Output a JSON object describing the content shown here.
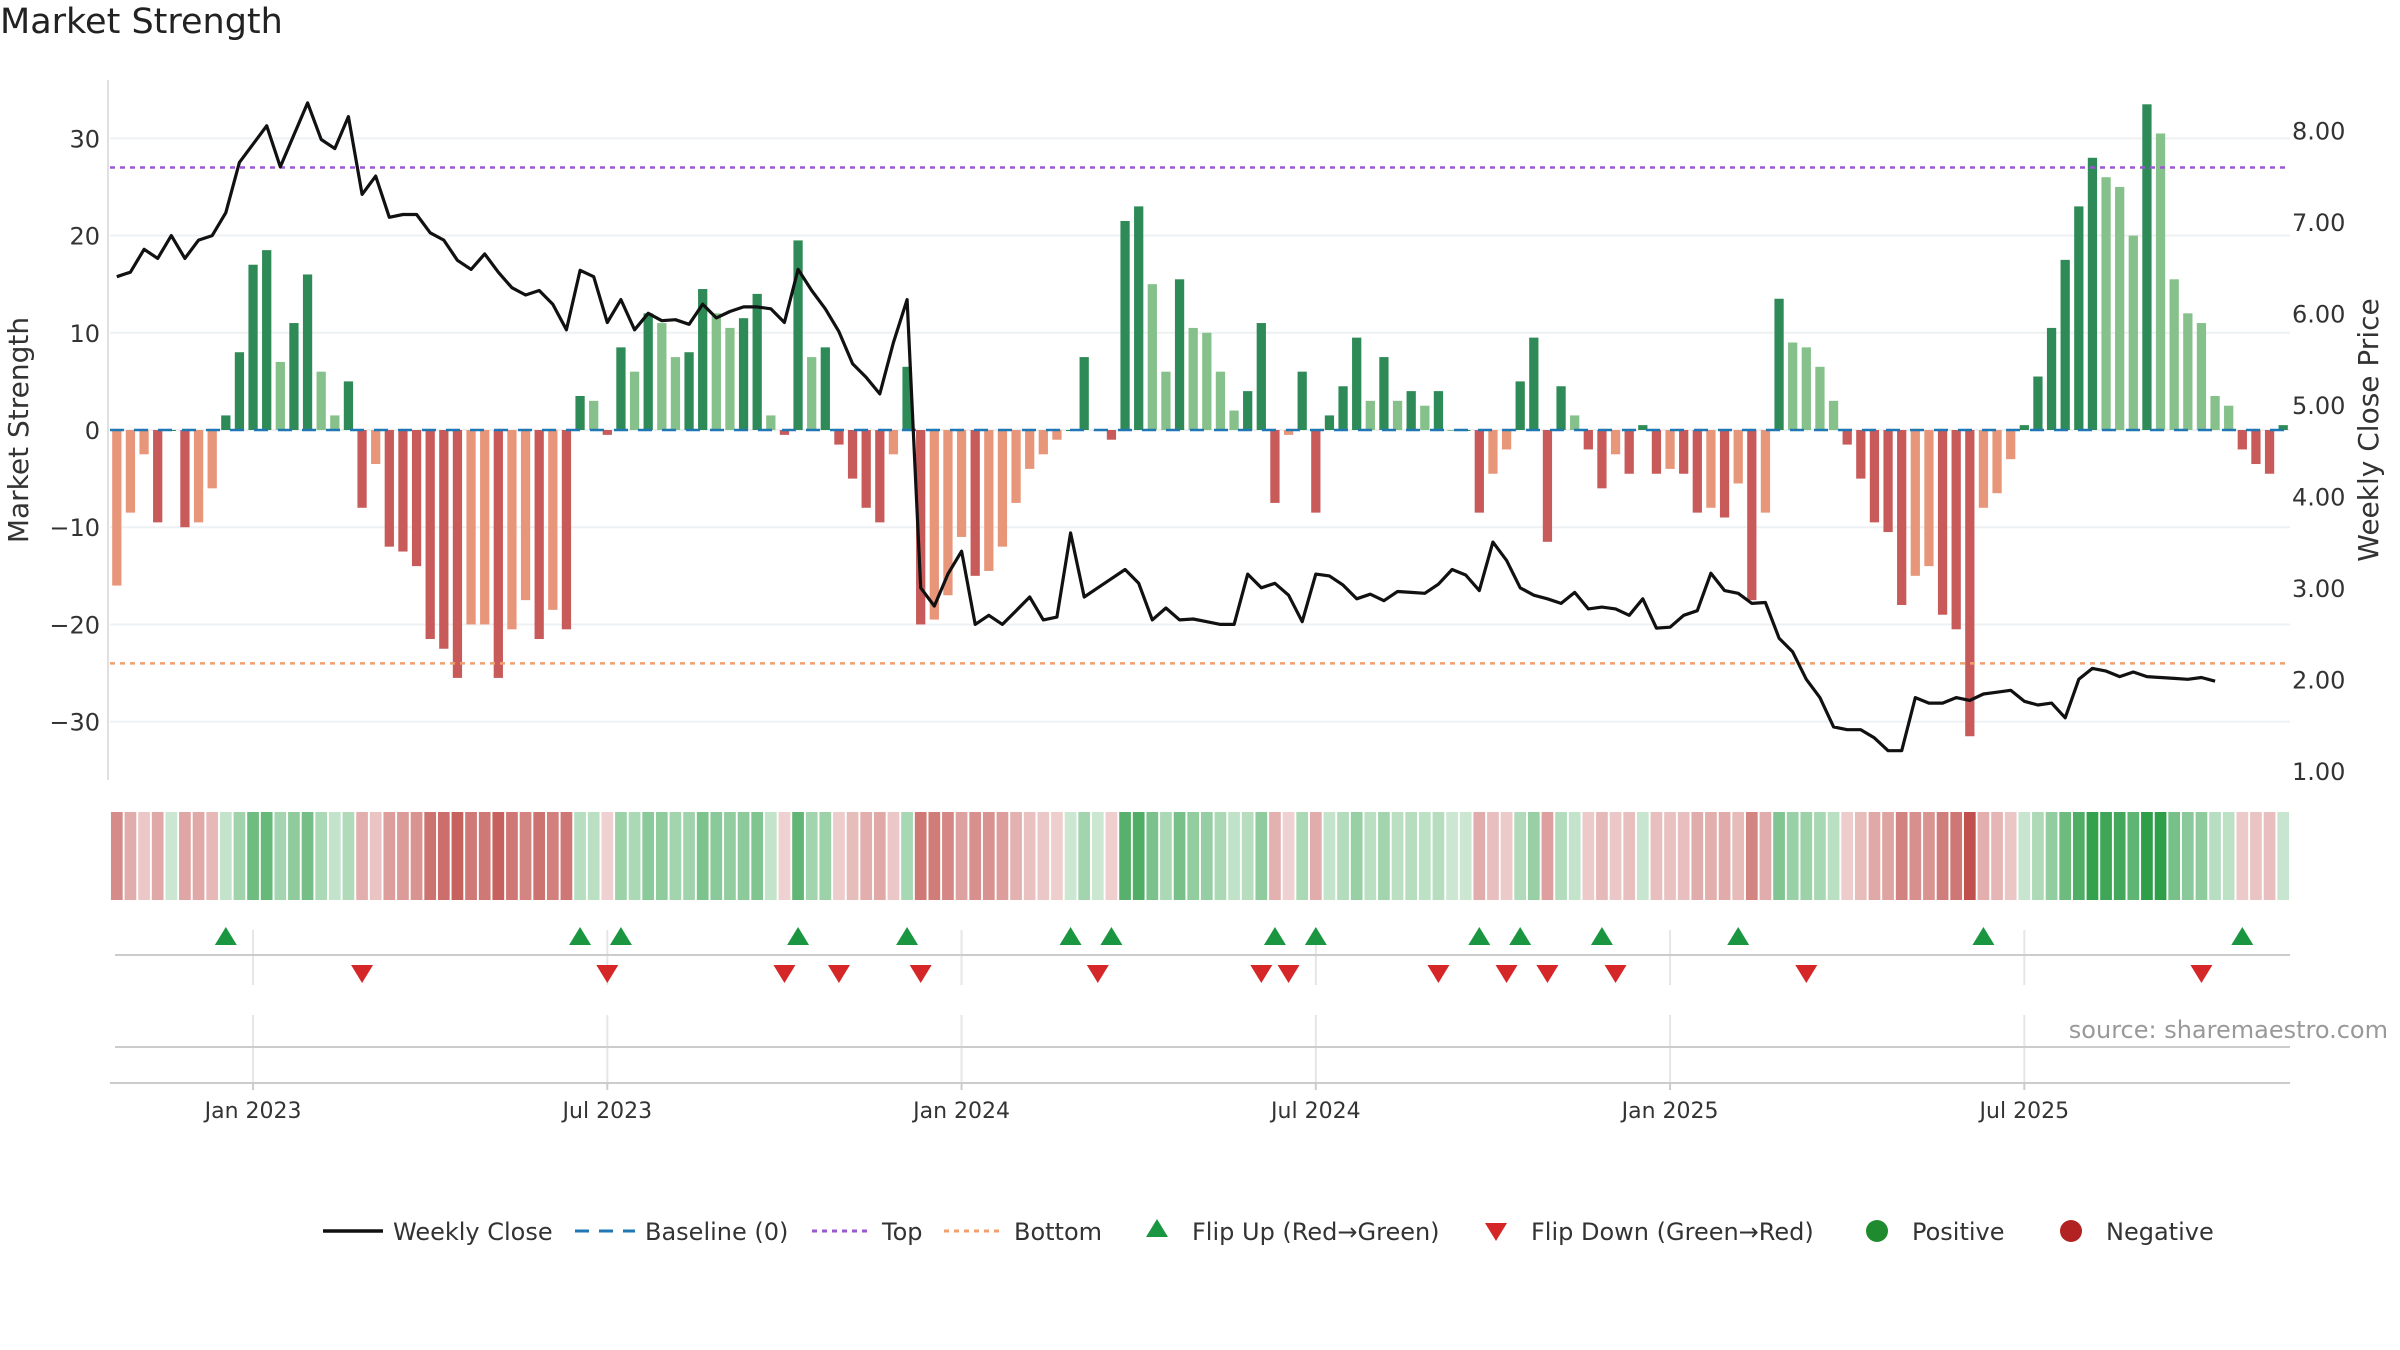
{
  "title": "Market Strength",
  "source": "source: sharemaestro.com",
  "colors": {
    "pos_dark": "#2e8b57",
    "pos_light": "#86c08a",
    "neg_dark": "#c85a5a",
    "neg_light": "#e8967a",
    "top_line": "#9b59d0",
    "bottom_line": "#f0a070",
    "baseline": "#1f77b4",
    "close": "#111111",
    "flip_up": "#1a9641",
    "flip_down": "#d62728",
    "positive": "#1e8c2e",
    "negative": "#b22222"
  },
  "legend": [
    {
      "label": "Weekly Close",
      "kind": "line",
      "color": "#111111"
    },
    {
      "label": "Baseline (0)",
      "kind": "dash",
      "color": "#1f77b4"
    },
    {
      "label": "Top",
      "kind": "dot",
      "color": "#9b59d0"
    },
    {
      "label": "Bottom",
      "kind": "dot",
      "color": "#f0a070"
    },
    {
      "label": "Flip Up (Red→Green)",
      "kind": "tri-up",
      "color": "#1a9641"
    },
    {
      "label": "Flip Down (Green→Red)",
      "kind": "tri-down",
      "color": "#d62728"
    },
    {
      "label": "Positive",
      "kind": "circle",
      "color": "#1e8c2e"
    },
    {
      "label": "Negative",
      "kind": "circle",
      "color": "#b22222"
    }
  ],
  "chart_data": {
    "type": "bar",
    "xlabels": [
      "Jan 2023",
      "Jul 2023",
      "Jan 2024",
      "Jul 2024",
      "Jan 2025",
      "Jul 2025"
    ],
    "xlabel_week_index": [
      10,
      36,
      62,
      88,
      114,
      140
    ],
    "ylabel_left": "Market Strength",
    "ylabel_right": "Weekly Close Price",
    "yticks_left": [
      30,
      20,
      10,
      0,
      -10,
      -20,
      -30
    ],
    "ytick_labels_left": [
      "30",
      "20",
      "10",
      "0",
      "−10",
      "−20",
      "−30"
    ],
    "ylim_left": [
      -36,
      36
    ],
    "yticks_right": [
      1,
      2,
      3,
      4,
      5,
      6,
      7,
      8
    ],
    "ytick_labels_right": [
      "1.00",
      "2.00",
      "3.00",
      "4.00",
      "5.00",
      "6.00",
      "7.00",
      "8.00"
    ],
    "ylim_right": [
      0.9,
      8.55
    ],
    "top_level": 27,
    "bottom_level": -24,
    "strength": [
      -16,
      -8.5,
      -2.5,
      -9.5,
      0,
      -10,
      -9.5,
      -6,
      1.5,
      8,
      17,
      18.5,
      7,
      11,
      16,
      6,
      1.5,
      5,
      -8,
      -3.5,
      -12,
      -12.5,
      -14,
      -21.5,
      -22.5,
      -25.5,
      -20,
      -20,
      -25.5,
      -20.5,
      -17.5,
      -21.5,
      -18.5,
      -20.5,
      3.5,
      3,
      -0.5,
      8.5,
      6,
      12,
      11,
      7.5,
      8,
      14.5,
      12,
      10.5,
      11.5,
      14,
      1.5,
      -0.5,
      19.5,
      7.5,
      8.5,
      -1.5,
      -5,
      -8,
      -9.5,
      -2.5,
      6.5,
      -20,
      -19.5,
      -17,
      -11,
      -15,
      -14.5,
      -12,
      -7.5,
      -4,
      -2.5,
      -1,
      0,
      7.5,
      0,
      -1,
      21.5,
      23,
      15,
      6,
      15.5,
      10.5,
      10,
      6,
      2,
      4,
      11,
      -7.5,
      -0.5,
      6,
      -8.5,
      1.5,
      4.5,
      9.5,
      3,
      7.5,
      3,
      4,
      2.5,
      4,
      0,
      0,
      -8.5,
      -4.5,
      -2,
      5,
      9.5,
      -11.5,
      4.5,
      1.5,
      -2,
      -6,
      -2.5,
      -4.5,
      0.5,
      -4.5,
      -4,
      -4.5,
      -8.5,
      -8,
      -9,
      -5.5,
      -17.5,
      -8.5,
      13.5,
      9,
      8.5,
      6.5,
      3,
      -1.5,
      -5,
      -9.5,
      -10.5,
      -18,
      -15,
      -14,
      -19,
      -20.5,
      -31.5,
      -8,
      -6.5,
      -3,
      0.5,
      5.5,
      10.5,
      17.5,
      23,
      28,
      26,
      25,
      20,
      33.5,
      30.5,
      15.5,
      12,
      11,
      3.5,
      2.5,
      -2,
      -3.5,
      -4.5,
      0.5
    ],
    "close": [
      6.4,
      6.45,
      6.7,
      6.6,
      6.85,
      6.6,
      6.8,
      6.85,
      7.1,
      7.65,
      7.85,
      8.05,
      7.6,
      7.95,
      8.3,
      7.9,
      7.8,
      8.15,
      7.3,
      7.5,
      7.05,
      7.08,
      7.08,
      6.88,
      6.8,
      6.58,
      6.48,
      6.65,
      6.45,
      6.28,
      6.2,
      6.25,
      6.1,
      5.82,
      6.47,
      6.4,
      5.9,
      6.15,
      5.82,
      6.0,
      5.92,
      5.93,
      5.88,
      6.1,
      5.95,
      6.02,
      6.07,
      6.07,
      6.05,
      5.9,
      6.48,
      6.25,
      6.05,
      5.8,
      5.45,
      5.3,
      5.12,
      5.68,
      6.15,
      3.0,
      2.8,
      3.15,
      3.4,
      2.6,
      2.7,
      2.6,
      2.75,
      2.9,
      2.65,
      2.68,
      3.6,
      2.9,
      3.0,
      3.1,
      3.2,
      3.05,
      2.65,
      2.78,
      2.65,
      2.66,
      2.63,
      2.6,
      2.6,
      3.15,
      3.0,
      3.05,
      2.92,
      2.63,
      3.15,
      3.13,
      3.03,
      2.88,
      2.93,
      2.86,
      2.96,
      2.95,
      2.94,
      3.04,
      3.2,
      3.14,
      2.97,
      3.5,
      3.3,
      3.0,
      2.92,
      2.88,
      2.83,
      2.95,
      2.77,
      2.79,
      2.77,
      2.7,
      2.88,
      2.56,
      2.57,
      2.7,
      2.75,
      3.16,
      2.97,
      2.94,
      2.83,
      2.84,
      2.45,
      2.3,
      2.0,
      1.8,
      1.48,
      1.45,
      1.45,
      1.36,
      1.22,
      1.22,
      1.8,
      1.74,
      1.74,
      1.8,
      1.77,
      1.84,
      1.86,
      1.88,
      1.76,
      1.72,
      1.74,
      1.58,
      2.0,
      2.12,
      2.09,
      2.03,
      2.08,
      2.03,
      2.02,
      2.01,
      2.0,
      2.02,
      1.98
    ],
    "flip_up_weeks": [
      8,
      34,
      37,
      50,
      58,
      70,
      73,
      85,
      88,
      100,
      103,
      109,
      119,
      137,
      156
    ],
    "flip_down_weeks": [
      18,
      36,
      49,
      53,
      59,
      72,
      84,
      86,
      97,
      102,
      105,
      110,
      124,
      153
    ]
  }
}
